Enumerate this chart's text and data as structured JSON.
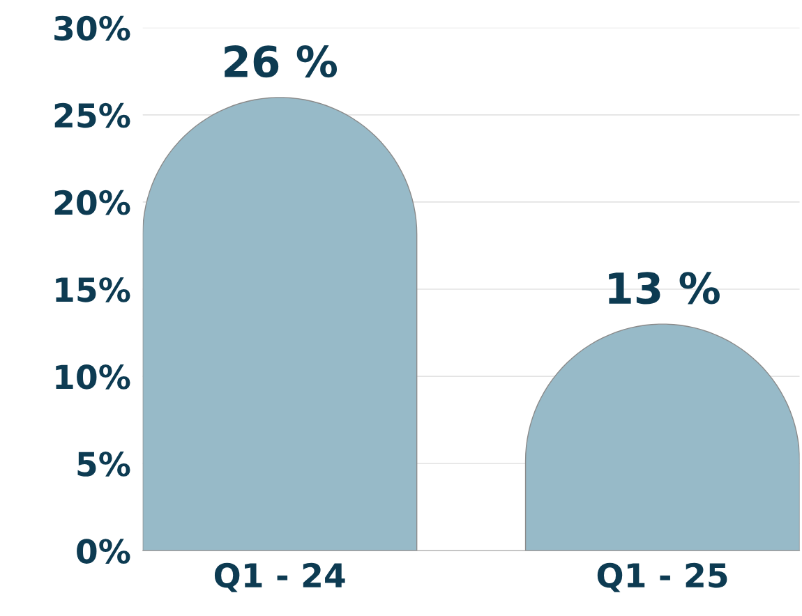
{
  "chart_data": {
    "type": "bar",
    "categories": [
      "Q1 - 24",
      "Q1 - 25"
    ],
    "values": [
      26,
      13
    ],
    "value_labels": [
      "26 %",
      "13 %"
    ],
    "color": "#97bac8",
    "ylim": [
      0,
      30
    ],
    "yticks": [
      {
        "value": 0,
        "label": "0%"
      },
      {
        "value": 5,
        "label": "5%"
      },
      {
        "value": 10,
        "label": "10%"
      },
      {
        "value": 15,
        "label": "15%"
      },
      {
        "value": 20,
        "label": "20%"
      },
      {
        "value": 25,
        "label": "25%"
      },
      {
        "value": 30,
        "label": "30%"
      }
    ],
    "grid": "y",
    "legend": false
  }
}
